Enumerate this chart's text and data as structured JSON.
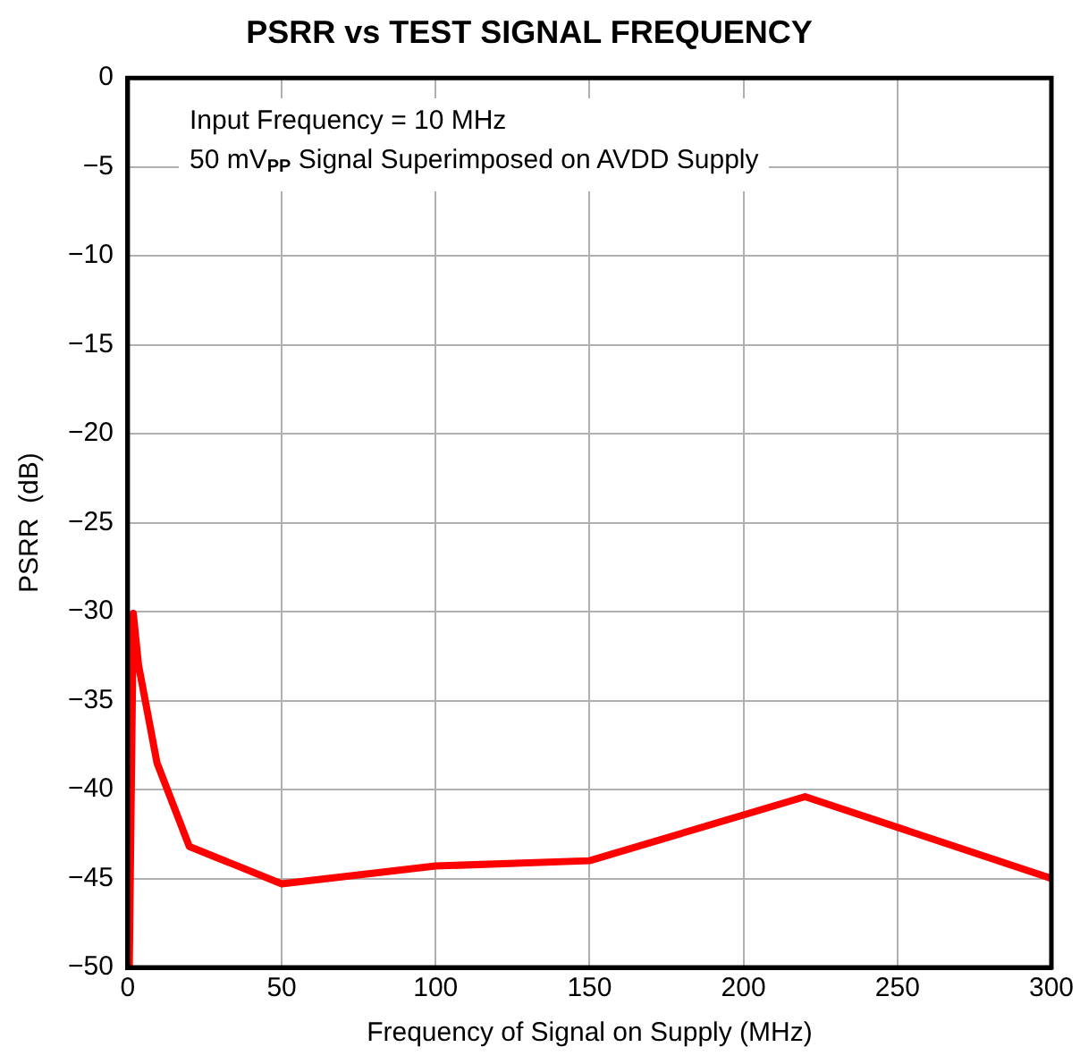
{
  "chart_data": {
    "type": "line",
    "title": "PSRR vs TEST SIGNAL FREQUENCY",
    "xlabel": "Frequency of Signal on Supply (MHz)",
    "ylabel": "PSRR  (dB)",
    "annotations": [
      "Input Frequency = 10 MHz",
      "50 mV$_{PP}$ Signal Superimposed on AVDD Supply"
    ],
    "x": [
      0.5,
      1.8,
      3.5,
      9.5,
      20,
      50,
      100,
      150,
      220,
      300
    ],
    "series": [
      {
        "color": "#ff0000",
        "values": [
          -50,
          -30.1,
          -33,
          -38.5,
          -43.2,
          -45.3,
          -44.3,
          -44,
          -40.4,
          -45
        ]
      }
    ],
    "xlim": [
      0,
      300
    ],
    "xticks": [
      0,
      50,
      100,
      150,
      200,
      250,
      300
    ],
    "ylim": [
      -50,
      0
    ],
    "yticks": [
      0,
      -5,
      -10,
      -15,
      -20,
      -25,
      -30,
      -35,
      -40,
      -45,
      -50
    ],
    "grid": true,
    "legend": false,
    "marker": "none",
    "line_style": "solid"
  }
}
